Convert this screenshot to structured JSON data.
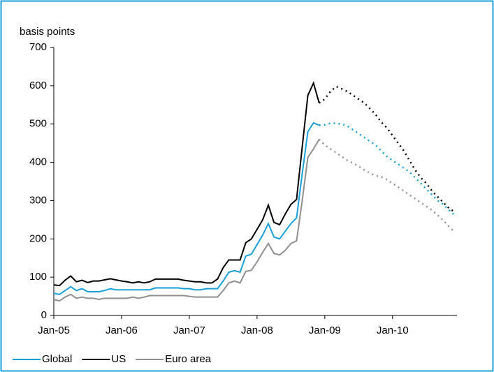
{
  "chart_data": {
    "type": "line",
    "y_label": "basis points",
    "categories": [
      "Jan-05",
      null,
      null,
      null,
      null,
      null,
      null,
      null,
      null,
      null,
      null,
      null,
      "Jan-06",
      null,
      null,
      null,
      null,
      null,
      null,
      null,
      null,
      null,
      null,
      null,
      "Jan-07",
      null,
      null,
      null,
      null,
      null,
      null,
      null,
      null,
      null,
      null,
      null,
      "Jan-08",
      null,
      null,
      null,
      null,
      null,
      null,
      null,
      null,
      null,
      null,
      null,
      "Jan-09",
      null,
      null,
      null,
      null,
      null,
      null,
      null,
      null,
      null,
      null,
      null,
      "Jan-10",
      null,
      null,
      null,
      null,
      null,
      null,
      null,
      null,
      null,
      null,
      null
    ],
    "ylim": [
      0,
      700
    ],
    "yticks": [
      0,
      100,
      200,
      300,
      400,
      500,
      600,
      700
    ],
    "legend": "bottom",
    "series": [
      {
        "name": "Global",
        "color": "#1aa0d8",
        "values": [
          58,
          55,
          65,
          75,
          65,
          70,
          62,
          62,
          62,
          65,
          70,
          67,
          67,
          67,
          67,
          67,
          67,
          67,
          72,
          72,
          72,
          72,
          72,
          70,
          70,
          67,
          67,
          70,
          70,
          70,
          90,
          113,
          117,
          113,
          155,
          160,
          185,
          210,
          240,
          205,
          200,
          220,
          240,
          255,
          370,
          480,
          503,
          497,
          null,
          null,
          null,
          null,
          null,
          null,
          null,
          null,
          null,
          null,
          null,
          null,
          null,
          null,
          null,
          null,
          null,
          null,
          null,
          null,
          null,
          null,
          null,
          null
        ],
        "forecast": [
          null,
          null,
          null,
          null,
          null,
          null,
          null,
          null,
          null,
          null,
          null,
          null,
          null,
          null,
          null,
          null,
          null,
          null,
          null,
          null,
          null,
          null,
          null,
          null,
          null,
          null,
          null,
          null,
          null,
          null,
          null,
          null,
          null,
          null,
          null,
          null,
          null,
          null,
          null,
          null,
          null,
          null,
          null,
          null,
          null,
          null,
          null,
          null,
          498,
          502,
          502,
          500,
          495,
          485,
          475,
          465,
          455,
          445,
          430,
          415,
          405,
          395,
          385,
          375,
          360,
          345,
          330,
          315,
          300,
          290,
          275,
          262
        ]
      },
      {
        "name": "US",
        "color": "#000000",
        "values": [
          80,
          78,
          92,
          103,
          88,
          92,
          86,
          90,
          90,
          93,
          96,
          93,
          90,
          88,
          85,
          88,
          85,
          88,
          95,
          95,
          95,
          95,
          95,
          92,
          90,
          88,
          88,
          85,
          85,
          95,
          125,
          145,
          145,
          145,
          190,
          200,
          225,
          250,
          288,
          243,
          237,
          265,
          290,
          303,
          440,
          575,
          607,
          555,
          null,
          null,
          null,
          null,
          null,
          null,
          null,
          null,
          null,
          null,
          null,
          null,
          null,
          null,
          null,
          null,
          null,
          null,
          null,
          null,
          null,
          null,
          null,
          null
        ],
        "forecast": [
          null,
          null,
          null,
          null,
          null,
          null,
          null,
          null,
          null,
          null,
          null,
          null,
          null,
          null,
          null,
          null,
          null,
          null,
          null,
          null,
          null,
          null,
          null,
          null,
          null,
          null,
          null,
          null,
          null,
          null,
          null,
          null,
          null,
          null,
          null,
          null,
          null,
          null,
          null,
          null,
          null,
          null,
          null,
          null,
          null,
          null,
          null,
          null,
          565,
          585,
          598,
          592,
          585,
          575,
          565,
          555,
          540,
          525,
          505,
          490,
          470,
          450,
          430,
          405,
          380,
          360,
          345,
          325,
          310,
          295,
          280,
          270
        ]
      },
      {
        "name": "Euro area",
        "color": "#909090",
        "values": [
          42,
          38,
          48,
          55,
          45,
          48,
          45,
          45,
          42,
          45,
          45,
          45,
          45,
          45,
          48,
          45,
          48,
          52,
          52,
          52,
          52,
          52,
          52,
          52,
          50,
          48,
          48,
          48,
          48,
          48,
          65,
          85,
          90,
          85,
          115,
          118,
          140,
          165,
          188,
          162,
          158,
          170,
          188,
          195,
          300,
          413,
          435,
          460,
          null,
          null,
          null,
          null,
          null,
          null,
          null,
          null,
          null,
          null,
          null,
          null,
          null,
          null,
          null,
          null,
          null,
          null,
          null,
          null,
          null,
          null,
          null,
          null
        ],
        "forecast": [
          null,
          null,
          null,
          null,
          null,
          null,
          null,
          null,
          null,
          null,
          null,
          null,
          null,
          null,
          null,
          null,
          null,
          null,
          null,
          null,
          null,
          null,
          null,
          null,
          null,
          null,
          null,
          null,
          null,
          null,
          null,
          null,
          null,
          null,
          null,
          null,
          null,
          null,
          null,
          null,
          null,
          null,
          null,
          null,
          null,
          null,
          null,
          null,
          445,
          435,
          425,
          415,
          405,
          398,
          390,
          380,
          372,
          365,
          362,
          355,
          345,
          335,
          325,
          315,
          305,
          295,
          285,
          275,
          262,
          248,
          232,
          218
        ]
      }
    ]
  }
}
